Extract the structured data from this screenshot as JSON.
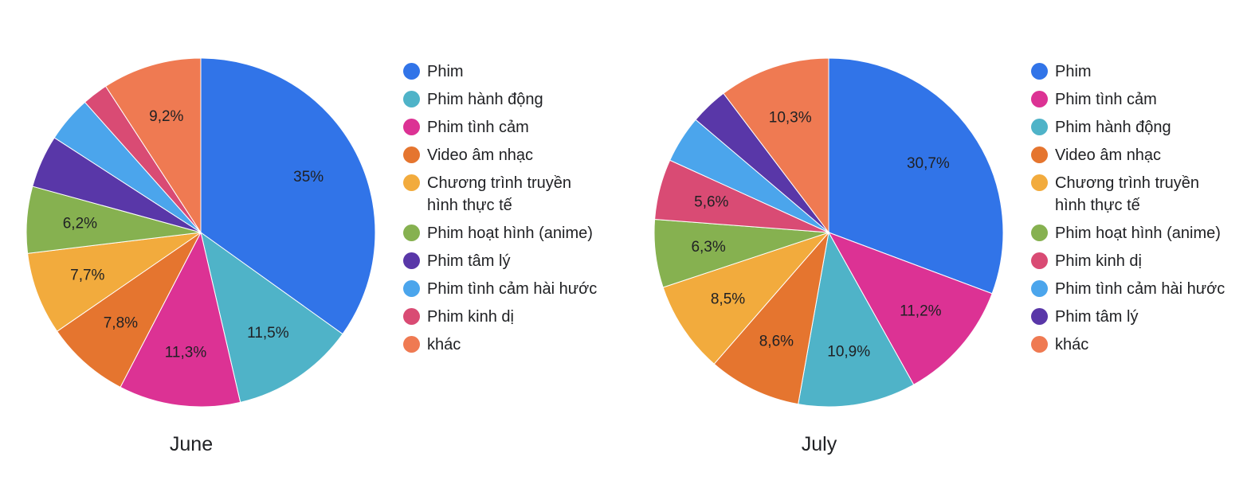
{
  "chart_data": [
    {
      "type": "pie",
      "title": "June",
      "slices": [
        {
          "label": "Phim",
          "value": 35,
          "value_label": "35%",
          "color": "#3174e8"
        },
        {
          "label": "Phim hành động",
          "value": 11.5,
          "value_label": "11,5%",
          "color": "#4fb3c8"
        },
        {
          "label": "Phim tình cảm",
          "value": 11.3,
          "value_label": "11,3%",
          "color": "#dc3294"
        },
        {
          "label": "Video âm nhạc",
          "value": 7.8,
          "value_label": "7,8%",
          "color": "#e5752f"
        },
        {
          "label": "Chương trình truyền hình thực tế",
          "value": 7.7,
          "value_label": "7,7%",
          "color": "#f2ab3d"
        },
        {
          "label": "Phim hoạt hình (anime)",
          "value": 6.2,
          "value_label": "6,2%",
          "color": "#86b150"
        },
        {
          "label": "Phim tâm lý",
          "value": 4.9,
          "value_label": "",
          "color": "#5937a8"
        },
        {
          "label": "Phim tình cảm hài hước",
          "value": 4.3,
          "value_label": "",
          "color": "#4ba5ec"
        },
        {
          "label": "Phim kinh dị",
          "value": 2.4,
          "value_label": "",
          "color": "#d94b74"
        },
        {
          "label": "khác",
          "value": 9.2,
          "value_label": "9,2%",
          "color": "#ef7a52"
        }
      ]
    },
    {
      "type": "pie",
      "title": "July",
      "slices": [
        {
          "label": "Phim",
          "value": 30.7,
          "value_label": "30,7%",
          "color": "#3174e8"
        },
        {
          "label": "Phim tình cảm",
          "value": 11.2,
          "value_label": "11,2%",
          "color": "#dc3294"
        },
        {
          "label": "Phim hành động",
          "value": 10.9,
          "value_label": "10,9%",
          "color": "#4fb3c8"
        },
        {
          "label": "Video âm nhạc",
          "value": 8.6,
          "value_label": "8,6%",
          "color": "#e5752f"
        },
        {
          "label": "Chương trình truyền hình thực tế",
          "value": 8.5,
          "value_label": "8,5%",
          "color": "#f2ab3d"
        },
        {
          "label": "Phim hoạt hình (anime)",
          "value": 6.3,
          "value_label": "6,3%",
          "color": "#86b150"
        },
        {
          "label": "Phim kinh dị",
          "value": 5.6,
          "value_label": "5,6%",
          "color": "#d94b74"
        },
        {
          "label": "Phim tình cảm hài hước",
          "value": 4.4,
          "value_label": "",
          "color": "#4ba5ec"
        },
        {
          "label": "Phim tâm lý",
          "value": 3.5,
          "value_label": "",
          "color": "#5937a8"
        },
        {
          "label": "khác",
          "value": 10.3,
          "value_label": "10,3%",
          "color": "#ef7a52"
        }
      ]
    }
  ]
}
